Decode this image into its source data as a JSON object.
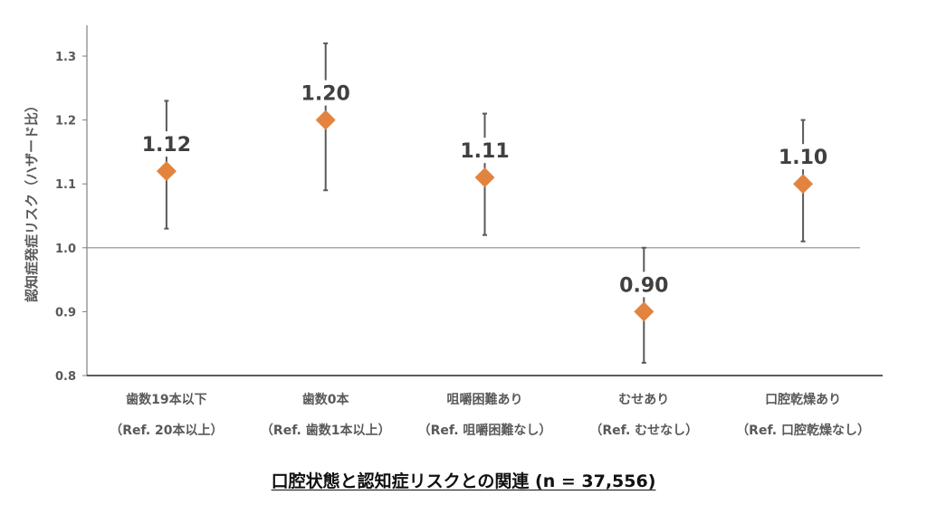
{
  "chart_data": {
    "type": "scatter",
    "ylabel": "認知症発症リスク（ハザード比）",
    "ylim": [
      0.8,
      1.3
    ],
    "yticks": [
      "1.3",
      "1.2",
      "1.1",
      "1.0",
      "0.9",
      "0.8"
    ],
    "reference_line": 1.0,
    "categories": [
      {
        "label": "歯数19本以下",
        "ref": "（Ref. 20本以上）",
        "value": 1.12,
        "value_label": "1.12",
        "ci_low": 1.03,
        "ci_high": 1.23
      },
      {
        "label": "歯数0本",
        "ref": "（Ref. 歯数1本以上）",
        "value": 1.2,
        "value_label": "1.20",
        "ci_low": 1.09,
        "ci_high": 1.32
      },
      {
        "label": "咀嚼困難あり",
        "ref": "（Ref. 咀嚼困難なし）",
        "value": 1.11,
        "value_label": "1.11",
        "ci_low": 1.02,
        "ci_high": 1.21
      },
      {
        "label": "むせあり",
        "ref": "（Ref. むせなし）",
        "value": 0.9,
        "value_label": "0.90",
        "ci_low": 0.82,
        "ci_high": 1.0
      },
      {
        "label": "口腔乾燥あり",
        "ref": "（Ref. 口腔乾燥なし）",
        "value": 1.1,
        "value_label": "1.10",
        "ci_low": 1.01,
        "ci_high": 1.2
      }
    ],
    "marker": "diamond",
    "marker_color": "#E2843F",
    "errorbar_color": "#595959"
  },
  "caption": "口腔状態と認知症リスクとの関連 (n = 37,556)"
}
